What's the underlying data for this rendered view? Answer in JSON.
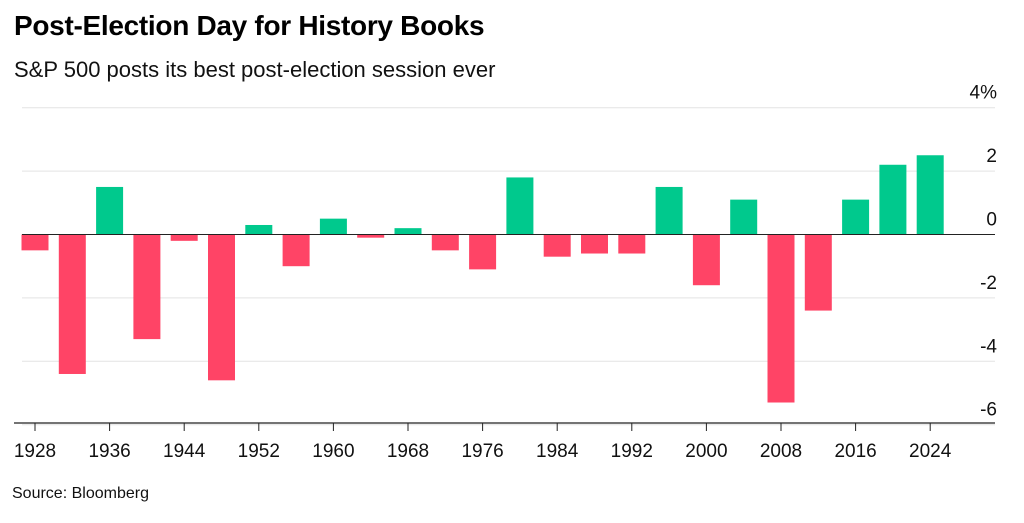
{
  "header": {
    "title": "Post-Election Day for History Books",
    "subtitle": "S&P 500 posts its best post-election session ever"
  },
  "footer": {
    "source": "Source: Bloomberg"
  },
  "colors": {
    "positive": "#00c98d",
    "negative": "#ff4466",
    "grid": "#e3e3e3",
    "axis": "#222222"
  },
  "chart_data": {
    "type": "bar",
    "title": "Post-Election Day for History Books",
    "subtitle": "S&P 500 posts its best post-election session ever",
    "xlabel": "",
    "ylabel": "",
    "ylim": [
      -6.5,
      4
    ],
    "y_ticks": [
      4,
      2,
      0,
      -2,
      -4,
      -6
    ],
    "y_tick_labels": [
      "4%",
      "2",
      "0",
      "-2",
      "-4",
      "-6"
    ],
    "x_tick_labels": [
      "1928",
      "1936",
      "1944",
      "1952",
      "1960",
      "1968",
      "1976",
      "1984",
      "1992",
      "2000",
      "2008",
      "2016",
      "2024"
    ],
    "categories": [
      "1928",
      "1932",
      "1936",
      "1940",
      "1944",
      "1948",
      "1952",
      "1956",
      "1960",
      "1964",
      "1968",
      "1972",
      "1976",
      "1980",
      "1984",
      "1988",
      "1992",
      "1996",
      "2000",
      "2004",
      "2008",
      "2012",
      "2016",
      "2020",
      "2024"
    ],
    "values": [
      -0.5,
      -4.4,
      1.5,
      -3.3,
      -0.2,
      -4.6,
      0.3,
      -1.0,
      0.5,
      -0.1,
      0.2,
      -0.5,
      -1.1,
      1.8,
      -0.7,
      -0.6,
      -0.6,
      1.5,
      -1.6,
      1.1,
      -5.3,
      -2.4,
      1.1,
      2.2,
      2.5
    ],
    "grid": true,
    "y_axis_position": "right"
  }
}
